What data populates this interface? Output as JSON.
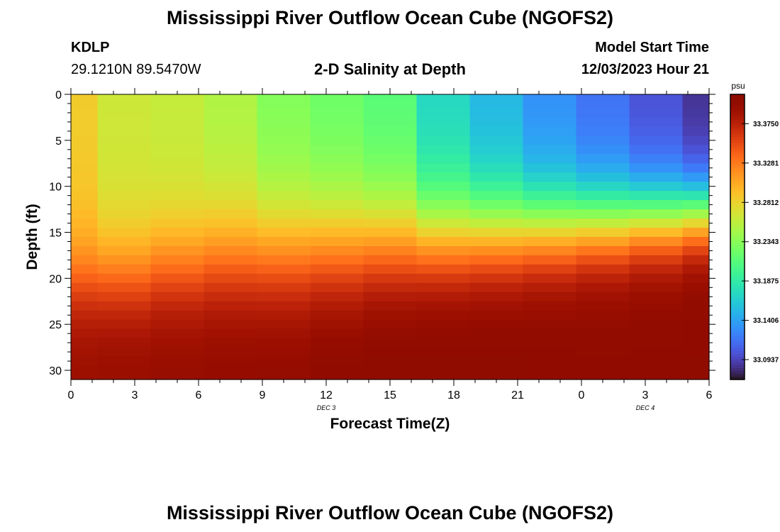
{
  "header": {
    "title": "Mississippi River Outflow Ocean Cube (NGOFS2)",
    "station": "KDLP",
    "coords": "29.1210N  89.5470W",
    "subtitle": "2-D Salinity at Depth",
    "model_start_label": "Model Start Time",
    "model_start_value": "12/03/2023 Hour 21"
  },
  "footer": {
    "next_title": "Mississippi River Outflow Ocean Cube (NGOFS2)"
  },
  "chart_data": {
    "type": "heatmap",
    "title": "2-D Salinity at Depth",
    "xlabel": "Forecast Time(Z)",
    "ylabel": "Depth (ft)",
    "x_ticks": [
      "0",
      "3",
      "6",
      "9",
      "12",
      "15",
      "18",
      "21",
      "0",
      "3",
      "6"
    ],
    "x_range": [
      0,
      30
    ],
    "day_labels": [
      {
        "text": "DEC 3",
        "at": 12
      },
      {
        "text": "DEC 4",
        "at": 27
      }
    ],
    "y_ticks": [
      0,
      5,
      10,
      15,
      20,
      25,
      30
    ],
    "y_range": [
      0,
      31
    ],
    "y_inverted": true,
    "colorbar": {
      "unit": "psu",
      "ticks": [
        "33.3750",
        "33.3281",
        "33.2812",
        "33.2343",
        "33.1875",
        "33.1406",
        "33.0937"
      ],
      "range": [
        33.07,
        33.41
      ],
      "colormap": "turbo"
    },
    "time_columns": [
      0,
      2.5,
      5,
      7.5,
      10,
      12.5,
      15,
      17.5,
      20,
      22.5,
      25,
      27.5,
      30
    ],
    "depth_rows": [
      0,
      1,
      2,
      3,
      4,
      5,
      6,
      7,
      8,
      9,
      10,
      11,
      12,
      13,
      14,
      15,
      16,
      17,
      18,
      19,
      20,
      21,
      22,
      23,
      24,
      25,
      26,
      27,
      28,
      29,
      30
    ],
    "surface_salinity": [
      33.285,
      33.264,
      33.26,
      33.25,
      33.23,
      33.22,
      33.21,
      33.17,
      33.15,
      33.13,
      33.115,
      33.1,
      33.085
    ],
    "halocline_mid_depth": [
      20,
      19.5,
      18.5,
      17.5,
      17,
      16.5,
      16,
      15.5,
      15,
      14.5,
      14,
      13.5,
      13
    ],
    "halocline_width": [
      3,
      3.2,
      3.4,
      3.6,
      3.8,
      3.8,
      3.6,
      3.4,
      3.2,
      3,
      2.8,
      2.6,
      2.4
    ],
    "bottom_salinity": [
      33.395,
      33.398,
      33.4,
      33.402,
      33.404,
      33.408,
      33.41,
      33.41,
      33.408,
      33.406,
      33.404,
      33.404,
      33.405
    ]
  }
}
